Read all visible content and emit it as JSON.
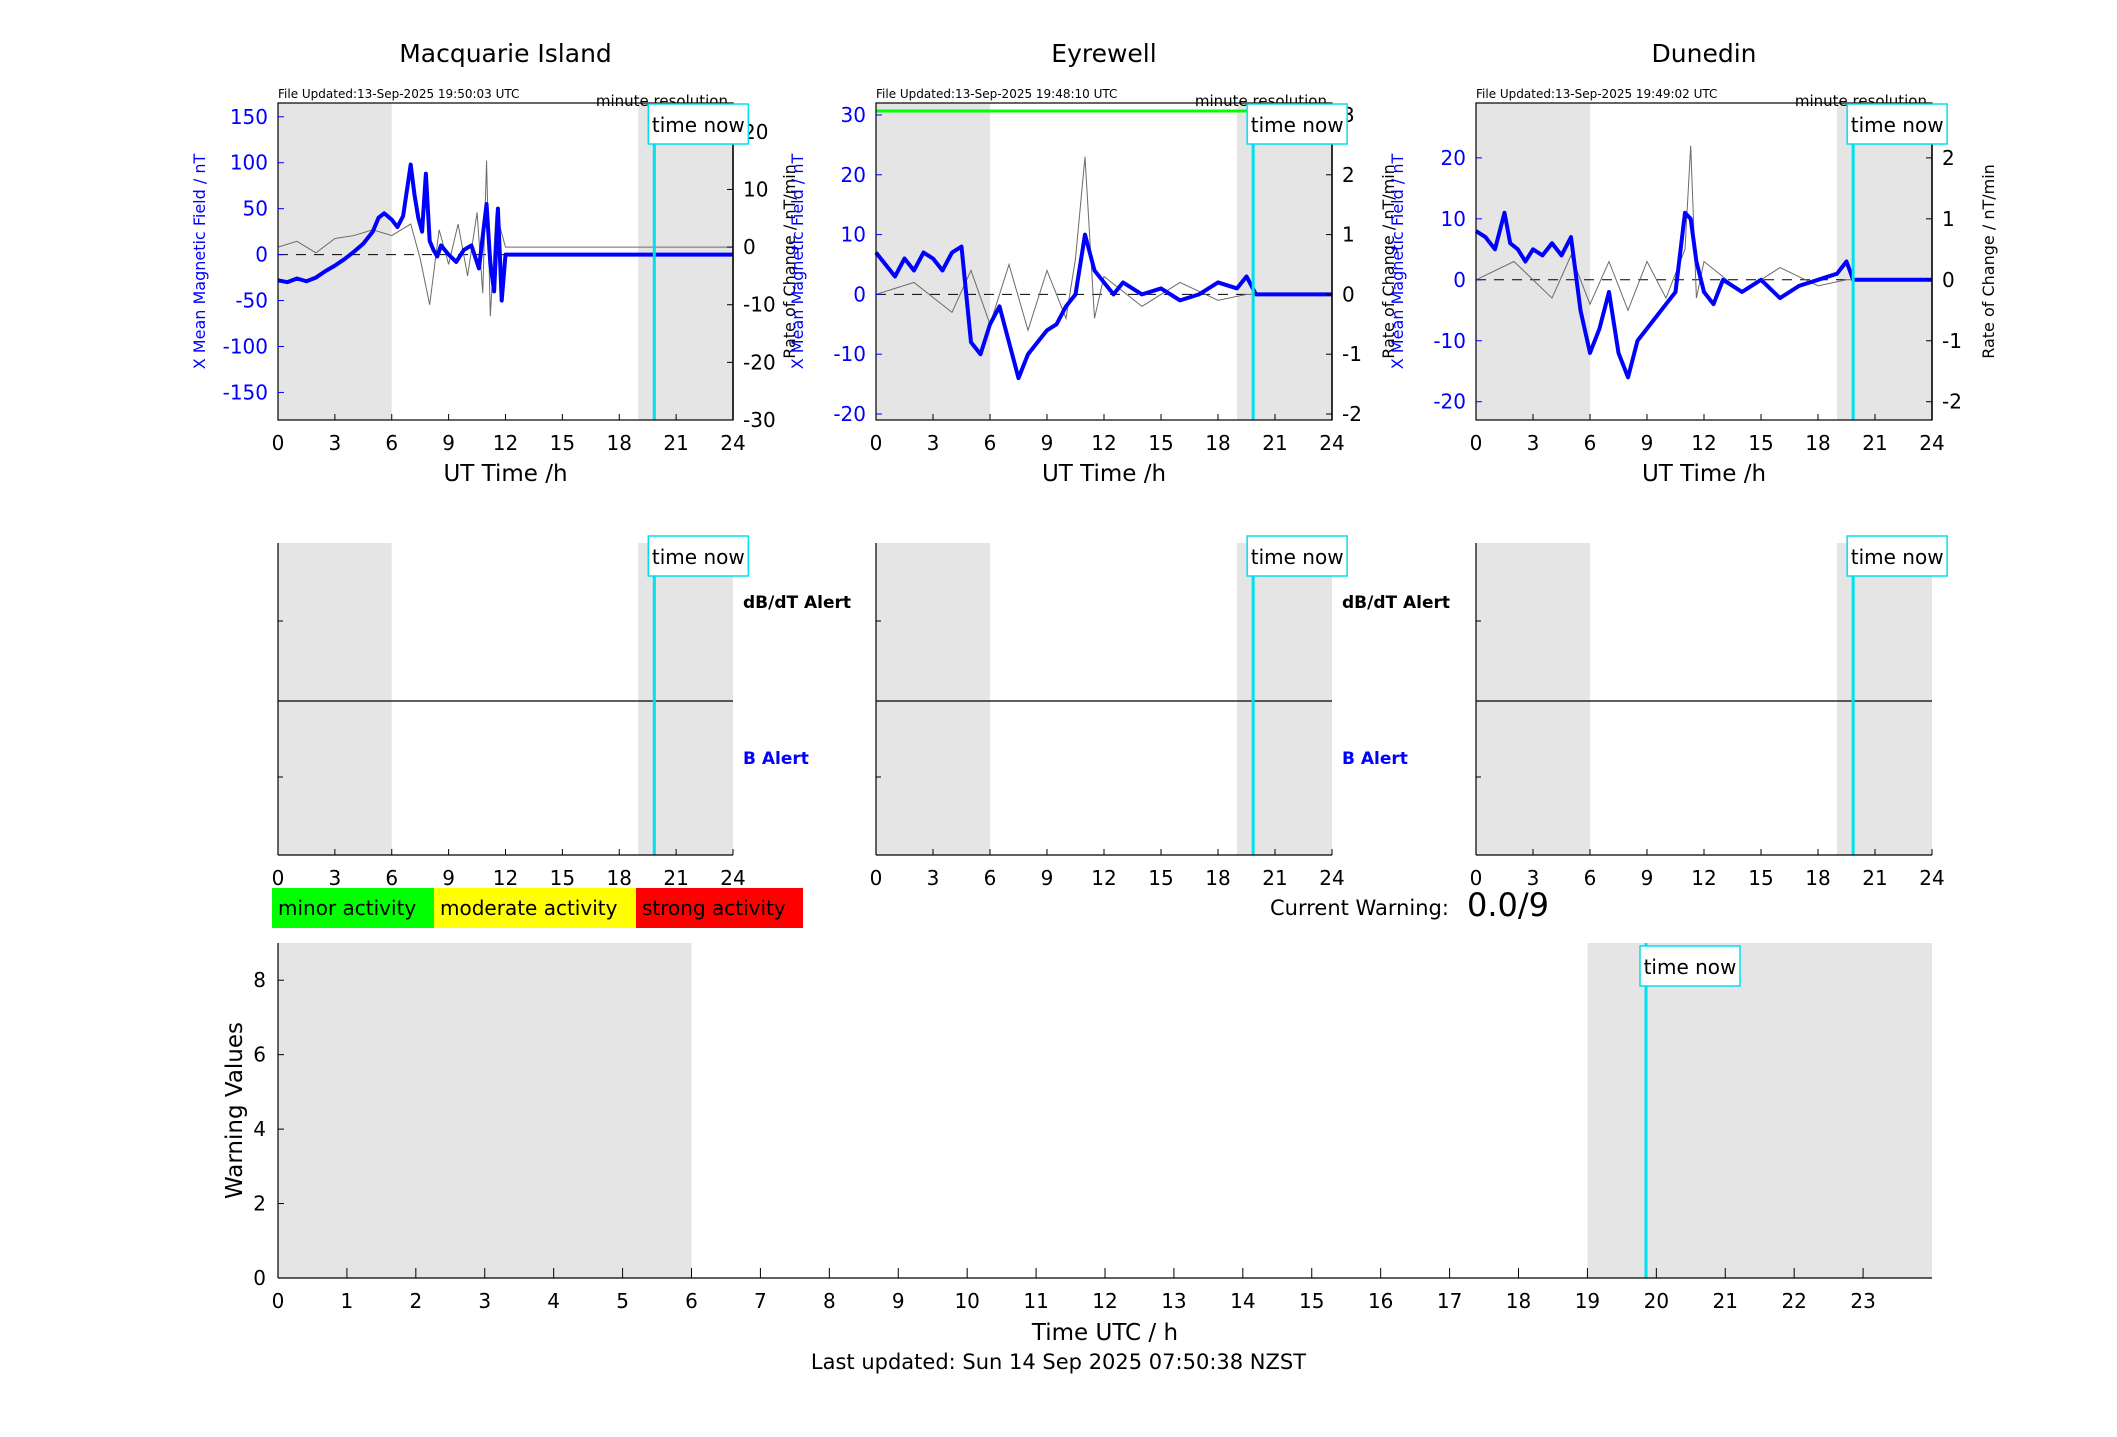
{
  "colors": {
    "field": "#0000ff",
    "rate": "#6b6b6b",
    "shade": "#e5e5e5",
    "now": "#00e0ee",
    "activity_green": "#00ff00",
    "activity_yellow": "#ffff00",
    "activity_red": "#ff0000"
  },
  "chart_data": [
    {
      "type": "line",
      "title": "Macquarie Island",
      "file_updated": "File Updated:13-Sep-2025 19:50:03 UTC",
      "resolution": "minute resolution",
      "now_label": "time now",
      "xlabel": "UT Time /h",
      "ylabel_left": "X Mean Magnetic Field / nT",
      "ylabel_right": "Rate of Change / nT/min",
      "xlim": [
        0,
        24
      ],
      "xticks": [
        0,
        3,
        6,
        9,
        12,
        15,
        18,
        21,
        24
      ],
      "ylim_left": [
        -180,
        165
      ],
      "yticks_left": [
        -150,
        -100,
        -50,
        0,
        50,
        100,
        150
      ],
      "ylim_right": [
        -30,
        25
      ],
      "yticks_right": [
        -30,
        -20,
        -10,
        0,
        10,
        20
      ],
      "shaded_hours": [
        [
          0,
          6
        ],
        [
          19,
          24
        ]
      ],
      "time_now": 19.85,
      "series_field_x": [
        0,
        0.5,
        1,
        1.5,
        2,
        2.5,
        3,
        3.5,
        4,
        4.5,
        5,
        5.3,
        5.6,
        6,
        6.3,
        6.6,
        7,
        7.2,
        7.4,
        7.6,
        7.8,
        8,
        8.2,
        8.4,
        8.6,
        9,
        9.4,
        9.8,
        10.2,
        10.6,
        10.8,
        11,
        11.2,
        11.4,
        11.6,
        11.8,
        12,
        24
      ],
      "series_field_y": [
        -28,
        -30,
        -26,
        -29,
        -25,
        -18,
        -12,
        -5,
        3,
        12,
        25,
        40,
        45,
        38,
        30,
        42,
        98,
        65,
        40,
        25,
        88,
        15,
        5,
        -2,
        10,
        0,
        -8,
        5,
        10,
        -15,
        20,
        55,
        -10,
        -40,
        50,
        -50,
        0,
        0
      ],
      "series_rate_x": [
        0,
        1,
        2,
        3,
        4,
        5,
        6,
        7,
        7.5,
        8,
        8.5,
        9,
        9.5,
        10,
        10.5,
        10.8,
        11,
        11.2,
        11.5,
        12,
        24
      ],
      "series_rate_y": [
        0,
        1,
        -1,
        1.5,
        2,
        3,
        2,
        4,
        -2,
        -10,
        3,
        -3,
        4,
        -5,
        6,
        -8,
        15,
        -12,
        6,
        0,
        0
      ]
    },
    {
      "type": "line",
      "title": "Eyrewell",
      "file_updated": "File Updated:13-Sep-2025 19:48:10 UTC",
      "resolution": "minute resolution",
      "now_label": "time now",
      "xlabel": "UT Time /h",
      "ylabel_left": "X Mean Magnetic Field / nT",
      "ylabel_right": "Rate of Change / nT/min",
      "xlim": [
        0,
        24
      ],
      "xticks": [
        0,
        3,
        6,
        9,
        12,
        15,
        18,
        21,
        24
      ],
      "ylim_left": [
        -21,
        32
      ],
      "yticks_left": [
        -20,
        -10,
        0,
        10,
        20,
        30
      ],
      "ylim_right": [
        -2.1,
        3.2
      ],
      "yticks_right": [
        -2,
        -1,
        0,
        1,
        2,
        3
      ],
      "shaded_hours": [
        [
          0,
          6
        ],
        [
          19,
          24
        ]
      ],
      "time_now": 19.85,
      "series_field_x": [
        0,
        0.5,
        1,
        1.5,
        2,
        2.5,
        3,
        3.5,
        4,
        4.5,
        5,
        5.5,
        6,
        6.5,
        7,
        7.5,
        8,
        8.5,
        9,
        9.5,
        10,
        10.5,
        11,
        11.5,
        12,
        12.5,
        13,
        14,
        15,
        16,
        17,
        18,
        19,
        19.5,
        20,
        24
      ],
      "series_field_y": [
        7,
        5,
        3,
        6,
        4,
        7,
        6,
        4,
        7,
        8,
        -8,
        -10,
        -5,
        -2,
        -8,
        -14,
        -10,
        -8,
        -6,
        -5,
        -2,
        0,
        10,
        4,
        2,
        0,
        2,
        0,
        1,
        -1,
        0,
        2,
        1,
        3,
        0,
        0
      ],
      "series_rate_x": [
        0,
        2,
        4,
        5,
        6,
        7,
        8,
        9,
        10,
        10.5,
        11,
        11.5,
        12,
        14,
        16,
        18,
        19.5,
        24
      ],
      "series_rate_y": [
        0,
        0.2,
        -0.3,
        0.4,
        -0.5,
        0.5,
        -0.6,
        0.4,
        -0.4,
        0.6,
        2.3,
        -0.4,
        0.3,
        -0.2,
        0.2,
        -0.1,
        0,
        0
      ],
      "green_level_hours": [
        0,
        19.85
      ]
    },
    {
      "type": "line",
      "title": "Dunedin",
      "file_updated": "File Updated:13-Sep-2025 19:49:02 UTC",
      "resolution": "minute resolution",
      "now_label": "time now",
      "xlabel": "UT Time /h",
      "ylabel_left": "X Mean Magnetic Field / nT",
      "ylabel_right": "Rate of Change / nT/min",
      "xlim": [
        0,
        24
      ],
      "xticks": [
        0,
        3,
        6,
        9,
        12,
        15,
        18,
        21,
        24
      ],
      "ylim_left": [
        -23,
        29
      ],
      "yticks_left": [
        -20,
        -10,
        0,
        10,
        20
      ],
      "ylim_right": [
        -2.3,
        2.9
      ],
      "yticks_right": [
        -2,
        -1,
        0,
        1,
        2
      ],
      "shaded_hours": [
        [
          0,
          6
        ],
        [
          19,
          24
        ]
      ],
      "time_now": 19.85,
      "series_field_x": [
        0,
        0.5,
        1,
        1.5,
        1.8,
        2.2,
        2.6,
        3,
        3.5,
        4,
        4.5,
        5,
        5.5,
        6,
        6.5,
        7,
        7.5,
        8,
        8.5,
        9,
        9.5,
        10,
        10.5,
        11,
        11.3,
        11.6,
        12,
        12.5,
        13,
        14,
        15,
        16,
        17,
        18,
        19,
        19.5,
        19.85,
        24
      ],
      "series_field_y": [
        8,
        7,
        5,
        11,
        6,
        5,
        3,
        5,
        4,
        6,
        4,
        7,
        -5,
        -12,
        -8,
        -2,
        -12,
        -16,
        -10,
        -8,
        -6,
        -4,
        -2,
        11,
        10,
        3,
        -2,
        -4,
        0,
        -2,
        0,
        -3,
        -1,
        0,
        1,
        3,
        0,
        0
      ],
      "series_rate_x": [
        0,
        2,
        4,
        5,
        6,
        7,
        8,
        9,
        10,
        11,
        11.3,
        11.6,
        12,
        14,
        16,
        18,
        19.5,
        24
      ],
      "series_rate_y": [
        0,
        0.3,
        -0.3,
        0.4,
        -0.4,
        0.3,
        -0.5,
        0.3,
        -0.3,
        0.5,
        2.2,
        -0.3,
        0.3,
        -0.2,
        0.2,
        -0.1,
        0,
        0
      ]
    },
    {
      "type": "line",
      "title": "",
      "xlabel": "Time UTC / h",
      "ylabel": "Warning Values",
      "xlim": [
        0,
        24
      ],
      "xticks": [
        0,
        1,
        2,
        3,
        4,
        5,
        6,
        7,
        8,
        9,
        10,
        11,
        12,
        13,
        14,
        15,
        16,
        17,
        18,
        19,
        20,
        21,
        22,
        23
      ],
      "ylim": [
        0,
        9
      ],
      "yticks": [
        0,
        2,
        4,
        6,
        8
      ],
      "shaded_hours": [
        [
          0,
          6
        ],
        [
          19,
          24
        ]
      ],
      "time_now": 19.85,
      "now_label": "time now",
      "values": []
    }
  ],
  "alerts": {
    "dbdt_label": "dB/dT Alert",
    "b_label": "B Alert",
    "xticks": [
      0,
      3,
      6,
      9,
      12,
      15,
      18,
      21,
      24
    ],
    "now_label": "time now"
  },
  "legend": {
    "minor": "minor activity",
    "moderate": "moderate activity",
    "strong": "strong activity"
  },
  "current_warning": {
    "label": "Current Warning:",
    "value": "0.0/9"
  },
  "footer": {
    "last_updated": "Last updated: Sun 14 Sep 2025 07:50:38 NZST"
  }
}
